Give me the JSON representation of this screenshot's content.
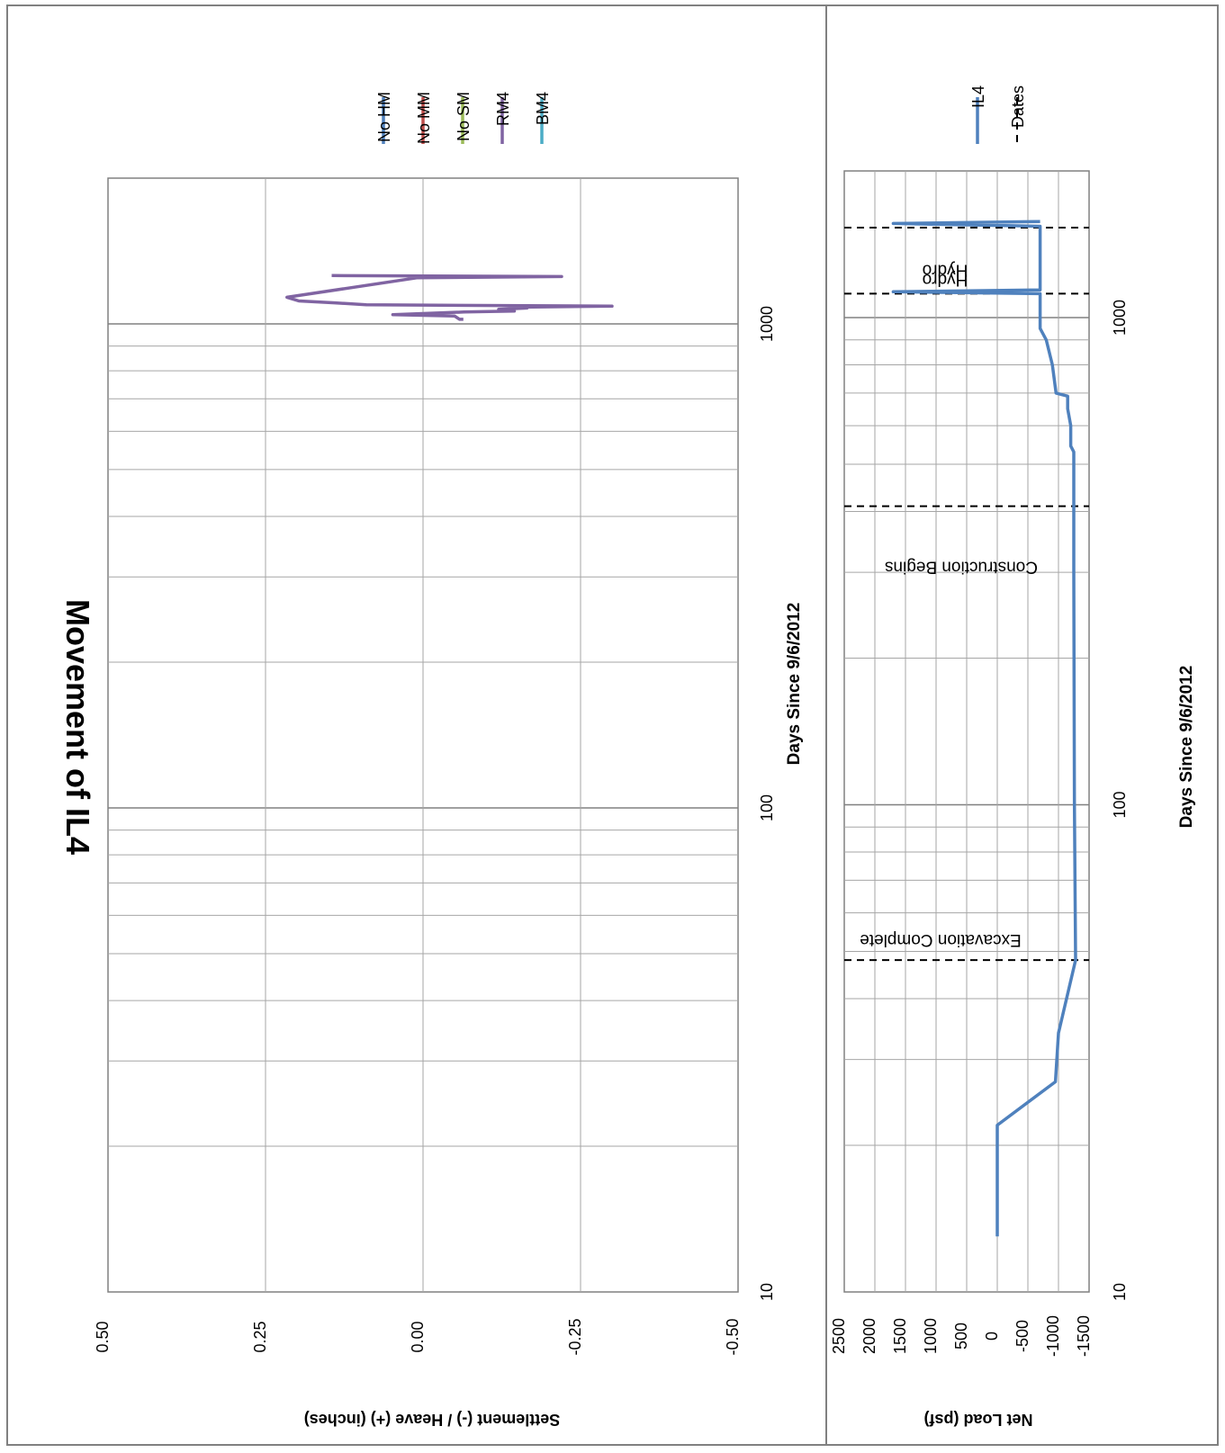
{
  "title": "Movement of IL4",
  "colors": {
    "No HM": "#4f81bd",
    "No MM": "#c0504d",
    "No SM": "#9bbb59",
    "RM4": "#8064a2",
    "BM4": "#4bacc6",
    "IL4": "#4f81bd",
    "Dates": "#000000",
    "grid": "#a6a6a6",
    "border": "#808080"
  },
  "chart_data": [
    {
      "type": "line",
      "title": "Movement of IL4",
      "xlabel": "Days Since 9/6/2012",
      "ylabel": "Settlement (-) / Heave (+) (inches)",
      "x_scale": "log",
      "xlim": [
        10,
        2000
      ],
      "ylim": [
        -0.5,
        0.5
      ],
      "x_ticks": [
        "10",
        "100",
        "1000"
      ],
      "y_ticks": [
        "0.50",
        "0.25",
        "0.00",
        "-0.25",
        "-0.50"
      ],
      "legend": [
        "No HM",
        "No MM",
        "No SM",
        "RM4",
        "BM4"
      ],
      "legend_position": "right",
      "grid": true,
      "series": [
        {
          "name": "No HM",
          "points": []
        },
        {
          "name": "No MM",
          "points": []
        },
        {
          "name": "No SM",
          "points": []
        },
        {
          "name": "RM4",
          "points": [
            [
              1022,
              -0.064
            ],
            [
              1022,
              -0.058
            ],
            [
              1038,
              -0.05
            ],
            [
              1045,
              0.048
            ],
            [
              1058,
              -0.065
            ],
            [
              1063,
              -0.145
            ],
            [
              1068,
              -0.125
            ],
            [
              1072,
              -0.12
            ],
            [
              1078,
              -0.165
            ],
            [
              1082,
              -0.143
            ],
            [
              1088,
              -0.3
            ],
            [
              1095,
              0.09
            ],
            [
              1105,
              0.14
            ],
            [
              1115,
              0.197
            ],
            [
              1135,
              0.216
            ],
            [
              1245,
              0.01
            ],
            [
              1252,
              -0.22
            ],
            [
              1258,
              0.145
            ]
          ]
        },
        {
          "name": "BM4",
          "points": []
        }
      ]
    },
    {
      "type": "line",
      "xlabel": "Days Since 9/6/2012",
      "ylabel": "Net Load (psf)",
      "x_scale": "log",
      "xlim": [
        10,
        2000
      ],
      "ylim": [
        -1500,
        2500
      ],
      "x_ticks": [
        "10",
        "100",
        "1000"
      ],
      "y_ticks": [
        "2500",
        "2000",
        "1500",
        "1000",
        "500",
        "0",
        "-500",
        "-1000",
        "-1500"
      ],
      "legend": [
        "IL4",
        "Dates"
      ],
      "legend_position": "right",
      "grid": true,
      "series": [
        {
          "name": "IL4",
          "points": [
            [
              13,
              0
            ],
            [
              22,
              0
            ],
            [
              27,
              -950
            ],
            [
              34,
              -1000
            ],
            [
              48,
              -1280
            ],
            [
              100,
              -1260
            ],
            [
              300,
              -1250
            ],
            [
              530,
              -1250
            ],
            [
              545,
              -1200
            ],
            [
              600,
              -1200
            ],
            [
              650,
              -1150
            ],
            [
              690,
              -1150
            ],
            [
              700,
              -960
            ],
            [
              800,
              -900
            ],
            [
              900,
              -800
            ],
            [
              950,
              -700
            ],
            [
              980,
              -700
            ],
            [
              1010,
              -700
            ],
            [
              1050,
              -700
            ],
            [
              1120,
              -700
            ],
            [
              1130,
              1700
            ],
            [
              1140,
              -700
            ],
            [
              1160,
              -700
            ],
            [
              1300,
              -700
            ],
            [
              1500,
              -700
            ],
            [
              1540,
              -700
            ],
            [
              1560,
              1700
            ],
            [
              1575,
              -700
            ]
          ]
        }
      ],
      "event_lines": [
        {
          "label": "Excavation Complete",
          "x": 48
        },
        {
          "label": "Construction Begins",
          "x": 410
        },
        {
          "label": "Hydro",
          "x": 1120
        },
        {
          "label": "Hydro",
          "x": 1530
        }
      ]
    }
  ]
}
